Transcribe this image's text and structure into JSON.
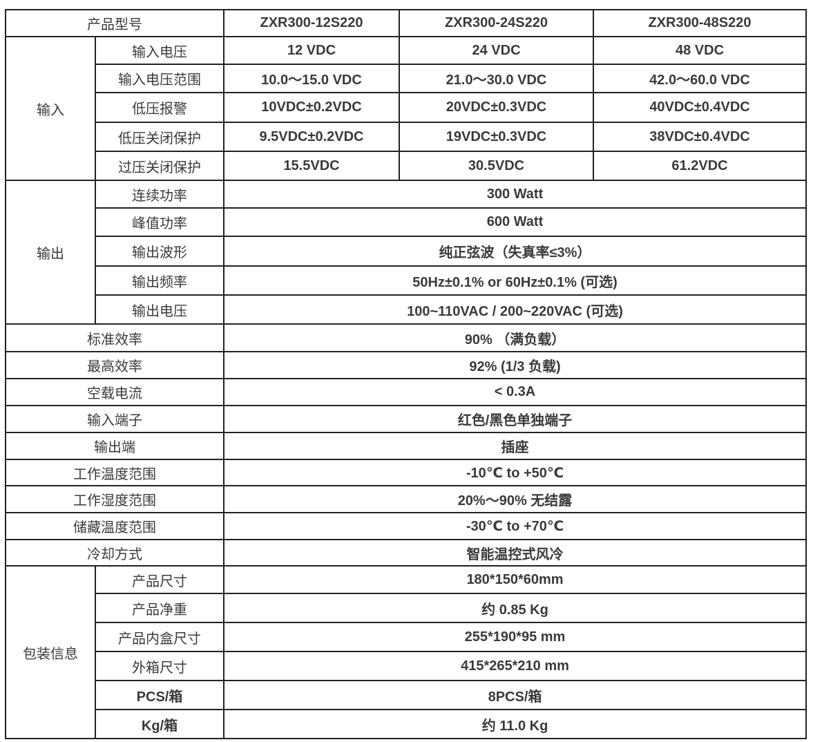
{
  "header": {
    "label": "产品型号",
    "models": [
      "ZXR300-12S220",
      "ZXR300-24S220",
      "ZXR300-48S220"
    ]
  },
  "input": {
    "group": "输入",
    "rows": [
      {
        "label": "输入电压",
        "values": [
          "12 VDC",
          "24 VDC",
          "48 VDC"
        ]
      },
      {
        "label": "输入电压范围",
        "values": [
          "10.0～15.0 VDC",
          "21.0～30.0 VDC",
          "42.0～60.0 VDC"
        ]
      },
      {
        "label": "低压报警",
        "values": [
          "10VDC±0.2VDC",
          "20VDC±0.3VDC",
          "40VDC±0.4VDC"
        ]
      },
      {
        "label": "低压关闭保护",
        "values": [
          "9.5VDC±0.2VDC",
          "19VDC±0.3VDC",
          "38VDC±0.4VDC"
        ]
      },
      {
        "label": "过压关闭保护",
        "values": [
          "15.5VDC",
          "30.5VDC",
          "61.2VDC"
        ]
      }
    ]
  },
  "output": {
    "group": "输出",
    "rows": [
      {
        "label": "连续功率",
        "value": "300 Watt"
      },
      {
        "label": "峰值功率",
        "value": "600 Watt"
      },
      {
        "label": "输出波形",
        "value": "纯正弦波（失真率≤3%）"
      },
      {
        "label": "输出频率",
        "value": "50Hz±0.1% or 60Hz±0.1% (可选)"
      },
      {
        "label": "输出电压",
        "value": "100~110VAC / 200~220VAC (可选)"
      }
    ]
  },
  "general": [
    {
      "label": "标准效率",
      "value": "90% （满负载）"
    },
    {
      "label": "最高效率",
      "value": "92% (1/3 负载)"
    },
    {
      "label": "空载电流",
      "value": "< 0.3A"
    },
    {
      "label": "输入端子",
      "value": "红色/黑色单独端子"
    },
    {
      "label": "输出端",
      "value": "插座"
    },
    {
      "label": "工作温度范围",
      "value": "-10℃ to +50℃"
    },
    {
      "label": "工作湿度范围",
      "value": "20%～90% 无结露"
    },
    {
      "label": "储藏温度范围",
      "value": "-30℃ to +70℃"
    },
    {
      "label": "冷却方式",
      "value": "智能温控式风冷"
    }
  ],
  "packaging": {
    "group": "包装信息",
    "rows": [
      {
        "label": "产品尺寸",
        "value": "180*150*60mm"
      },
      {
        "label": "产品净重",
        "value": "约 0.85 Kg"
      },
      {
        "label": "产品内盒尺寸",
        "value": "255*190*95 mm"
      },
      {
        "label": "外箱尺寸",
        "value": "415*265*210 mm"
      },
      {
        "label": "PCS/箱",
        "value": "8PCS/箱"
      },
      {
        "label": "Kg/箱",
        "value": "约 11.0 Kg"
      }
    ]
  }
}
